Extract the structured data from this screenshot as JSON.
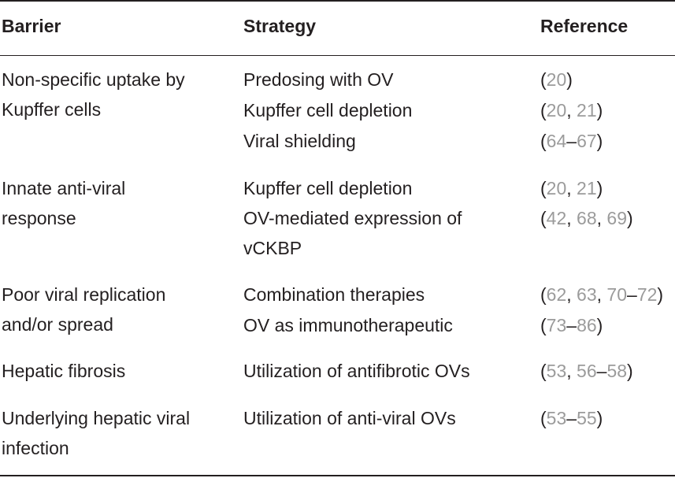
{
  "header": {
    "barrier": "Barrier",
    "strategy": "Strategy",
    "reference": "Reference"
  },
  "rows": [
    {
      "barrier": [
        "Non-specific uptake by",
        "Kupffer cells"
      ],
      "strategies": [
        {
          "text": "Predosing with OV",
          "refs": [
            "20"
          ]
        },
        {
          "text": "Kupffer cell depletion",
          "refs": [
            "20",
            "21"
          ]
        },
        {
          "text": "Viral shielding",
          "refs": [
            "64–67"
          ]
        }
      ]
    },
    {
      "barrier": [
        "Innate anti-viral",
        "response"
      ],
      "strategies": [
        {
          "text": "Kupffer cell depletion",
          "refs": [
            "20",
            "21"
          ]
        },
        {
          "text": [
            "OV-mediated expression of",
            "vCKBP"
          ],
          "refs": [
            "42",
            "68",
            "69"
          ]
        }
      ]
    },
    {
      "barrier": [
        "Poor viral replication",
        "and/or spread"
      ],
      "strategies": [
        {
          "text": "Combination therapies",
          "refs": [
            "62",
            "63",
            "70–72"
          ]
        },
        {
          "text": "OV as immunotherapeutic",
          "refs": [
            "73–86"
          ]
        }
      ]
    },
    {
      "barrier": [
        "Hepatic fibrosis"
      ],
      "strategies": [
        {
          "text": "Utilization of antifibrotic OVs",
          "refs": [
            "53",
            "56–58"
          ]
        }
      ]
    },
    {
      "barrier": [
        "Underlying hepatic viral",
        "infection"
      ],
      "strategies": [
        {
          "text": "Utilization of anti-viral OVs",
          "refs": [
            "53–55"
          ]
        }
      ]
    }
  ]
}
